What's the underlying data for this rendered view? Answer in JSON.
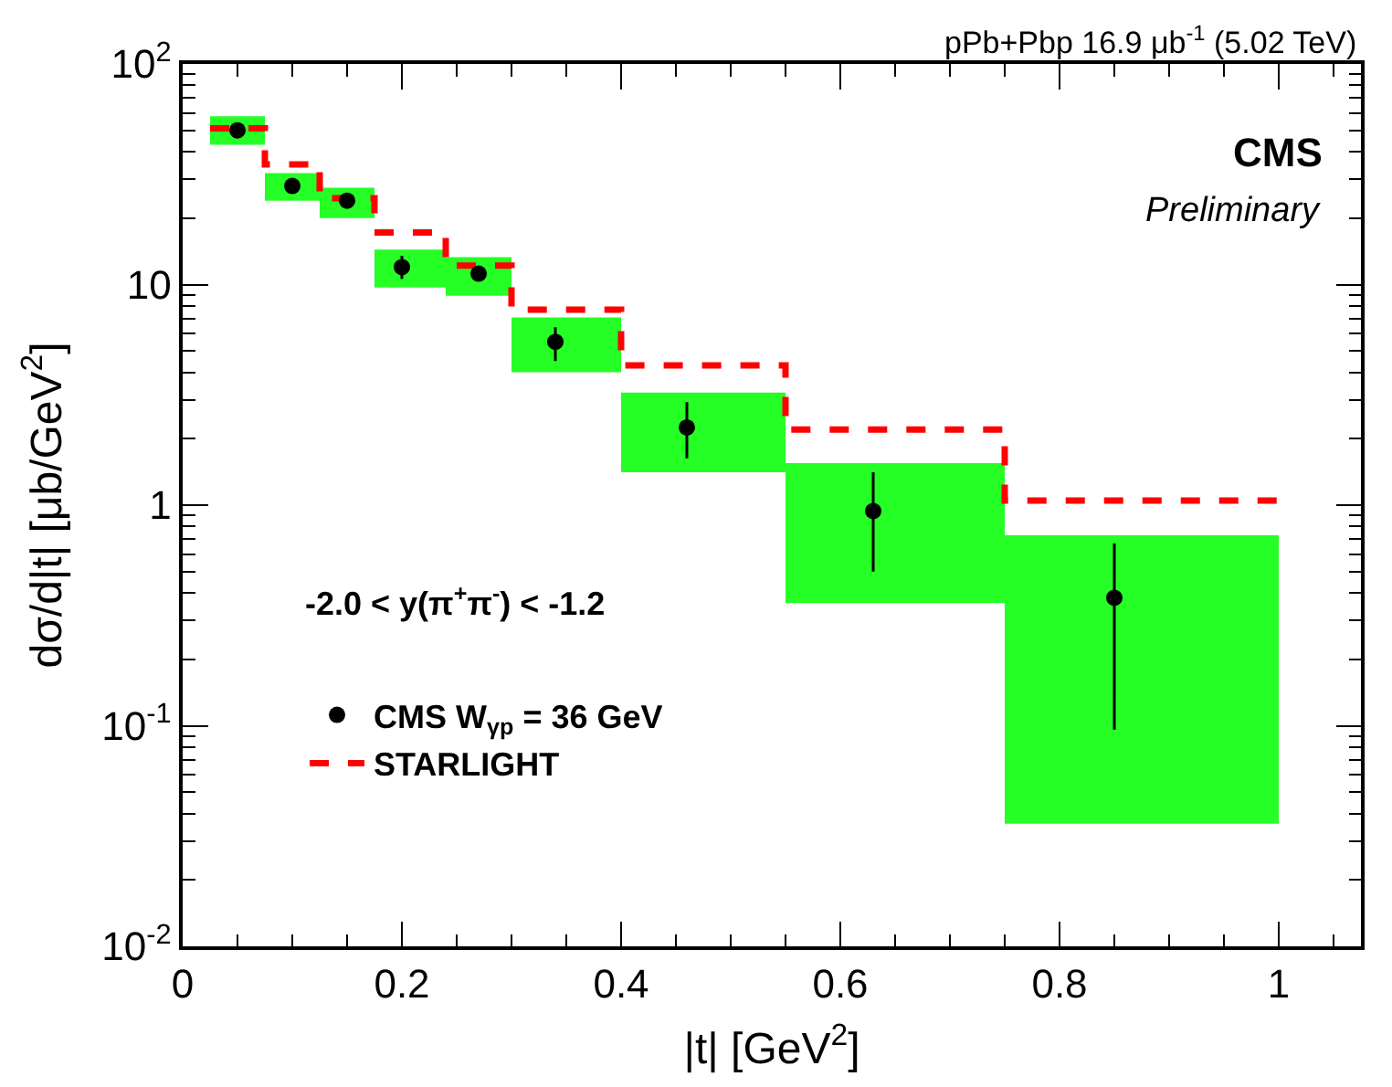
{
  "chart_data": {
    "type": "scatter",
    "xlabel": "|t| [GeV$^{2}$]",
    "ylabel": "dσ/d|t| [μb/GeV$^{2}$]",
    "annotations": [
      "pPb+Pbp 16.9 μb$^{-1}$ (5.02 TeV)",
      "CMS",
      "Preliminary",
      "-2.0 < y(π$^{+}$π$^{-}$) < -1.2"
    ],
    "log": "y",
    "grid": false,
    "legend": "bottom left",
    "xlim": [
      0,
      1.075
    ],
    "xticks": [
      0,
      0.2,
      0.4,
      0.6,
      0.8,
      1
    ],
    "ylim": [
      0.01,
      100
    ],
    "yticks": [
      {
        "value": 0.01,
        "label": "10$^{-2}$"
      },
      {
        "value": 0.1,
        "label": "10$^{-1}$"
      },
      1,
      10,
      {
        "value": 100,
        "label": "10$^{2}$"
      }
    ],
    "series": [
      {
        "type": "bar",
        "color": "#00ff00",
        "x": [
          0.05,
          0.1,
          0.15,
          0.2075,
          0.27,
          0.35,
          0.475,
          0.65,
          0.875
        ],
        "base": [
          43,
          24,
          20,
          9.7,
          8.9,
          4.0,
          1.41,
          0.36,
          0.036
        ],
        "values": [
          15,
          8,
          7.5,
          4.7,
          4.4,
          3.1,
          1.83,
          1.19,
          0.694
        ]
      },
      {
        "type": "step",
        "name": "STARLIGHT",
        "color": "#ff0000",
        "line_style": "dashed",
        "x": [
          0.025,
          0.075,
          0.125,
          0.175,
          0.24,
          0.3,
          0.4,
          0.55,
          0.75,
          1.0
        ],
        "values": [
          51,
          35,
          24.6,
          17.2,
          12.2,
          7.7,
          4.3,
          2.2,
          1.05,
          1.05
        ]
      },
      {
        "name": "CMS W$_{γp}$ = 36 GeV",
        "color": "#000000",
        "marker": "circle",
        "x": [
          0.05,
          0.1,
          0.15,
          0.2,
          0.27,
          0.34,
          0.46,
          0.63,
          0.85
        ],
        "values": [
          50,
          28,
          24,
          12,
          11.2,
          5.5,
          2.25,
          0.94,
          0.38
        ],
        "errors": [
          null,
          null,
          null,
          [
            10.6,
            13.5
          ],
          null,
          [
            4.5,
            6.4
          ],
          [
            1.63,
            2.93
          ],
          [
            0.5,
            1.41
          ],
          [
            0.096,
            0.67
          ]
        ]
      }
    ]
  }
}
